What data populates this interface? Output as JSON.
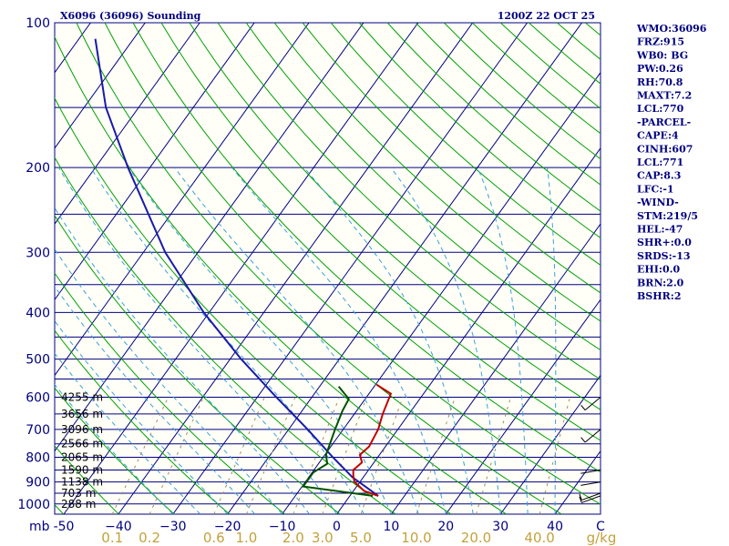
{
  "header": {
    "station_title": "X6096 (36096) Sounding",
    "valid_time": "1200Z 22 OCT 25"
  },
  "indices": [
    "WMO:36096",
    "FRZ:915",
    "WB0: BG",
    "PW:0.26",
    "RH:70.8",
    "MAXT:7.2",
    "LCL:770",
    "-PARCEL-",
    "CAPE:4",
    "CINH:607",
    "LCL:771",
    "CAP:8.3",
    "LFC:-1",
    "-WIND-",
    "STM:219/5",
    "HEL:-47",
    "SHR+:0.0",
    "SRDS:-13",
    "EHI:0.0",
    "BRN:2.0",
    "BSHR:2"
  ],
  "chart_data": {
    "type": "skew-t",
    "title": "X6096 (36096) Sounding",
    "valid_time": "1200Z 22 OCT 25",
    "pressure_axis": {
      "unit_label": "mb",
      "scale": "log",
      "range": [
        1050,
        100
      ],
      "tick_labels": [
        "100",
        "200",
        "300",
        "400",
        "500",
        "600",
        "700",
        "800",
        "900",
        "1000"
      ]
    },
    "temperature_axis": {
      "unit_label": "C",
      "range": [
        -50,
        50
      ],
      "tick_labels": [
        "-50",
        "−40",
        "−30",
        "−20",
        "−10",
        "0",
        "10",
        "20",
        "30",
        "40"
      ]
    },
    "mixing_ratio_axis": {
      "unit_label": "g/kg",
      "tick_labels": [
        "0.1",
        "0.2",
        "0.6",
        "1.0",
        "2.0",
        "3.0",
        "5.0",
        "10.0",
        "20.0",
        "40.0"
      ],
      "values": [
        0.1,
        0.2,
        0.6,
        1.0,
        2.0,
        3.0,
        5.0,
        10.0,
        20.0,
        40.0
      ]
    },
    "height_labels": [
      {
        "p": 600,
        "label": "4255 m"
      },
      {
        "p": 650,
        "label": "3656 m"
      },
      {
        "p": 700,
        "label": "3096 m"
      },
      {
        "p": 750,
        "label": "2566 m"
      },
      {
        "p": 800,
        "label": "2065 m"
      },
      {
        "p": 850,
        "label": "1590 m"
      },
      {
        "p": 900,
        "label": "1138 m"
      },
      {
        "p": 950,
        "label": "703 m"
      },
      {
        "p": 1000,
        "label": "288 m"
      }
    ],
    "temperature_profile": [
      {
        "p": 962,
        "t": 5.2
      },
      {
        "p": 940,
        "t": 2.0
      },
      {
        "p": 900,
        "t": -1.0
      },
      {
        "p": 875,
        "t": -2.0
      },
      {
        "p": 850,
        "t": -2.8
      },
      {
        "p": 820,
        "t": -2.2
      },
      {
        "p": 790,
        "t": -3.6
      },
      {
        "p": 760,
        "t": -3.0
      },
      {
        "p": 700,
        "t": -3.6
      },
      {
        "p": 650,
        "t": -4.8
      },
      {
        "p": 590,
        "t": -6.0
      },
      {
        "p": 565,
        "t": -9.8
      }
    ],
    "dewpoint_profile": [
      {
        "p": 962,
        "t": 4.2
      },
      {
        "p": 920,
        "t": -9.8
      },
      {
        "p": 860,
        "t": -9.8
      },
      {
        "p": 825,
        "t": -8.4
      },
      {
        "p": 790,
        "t": -9.8
      },
      {
        "p": 700,
        "t": -11.5
      },
      {
        "p": 640,
        "t": -12.6
      },
      {
        "p": 605,
        "t": -13.0
      },
      {
        "p": 570,
        "t": -16.5
      }
    ],
    "parcel_profile": [
      {
        "p": 962,
        "t": 5.2
      },
      {
        "p": 880,
        "t": -2.0
      },
      {
        "p": 800,
        "t": -8.2
      },
      {
        "p": 700,
        "t": -16.5
      },
      {
        "p": 600,
        "t": -26.5
      },
      {
        "p": 500,
        "t": -38.0
      },
      {
        "p": 400,
        "t": -51.0
      },
      {
        "p": 300,
        "t": -66.0
      },
      {
        "p": 200,
        "t": -84.0
      },
      {
        "p": 150,
        "t": -96.0
      },
      {
        "p": 108,
        "t": -107.0
      }
    ],
    "wind_barbs": [
      {
        "p": 962,
        "dir": 250,
        "speed_kt": 5
      },
      {
        "p": 950,
        "dir": 250,
        "speed_kt": 5
      },
      {
        "p": 900,
        "dir": 260,
        "speed_kt": 0
      },
      {
        "p": 850,
        "dir": 260,
        "speed_kt": 0
      },
      {
        "p": 700,
        "dir": 230,
        "speed_kt": 5
      },
      {
        "p": 600,
        "dir": 230,
        "speed_kt": 10
      }
    ],
    "grid": true
  }
}
